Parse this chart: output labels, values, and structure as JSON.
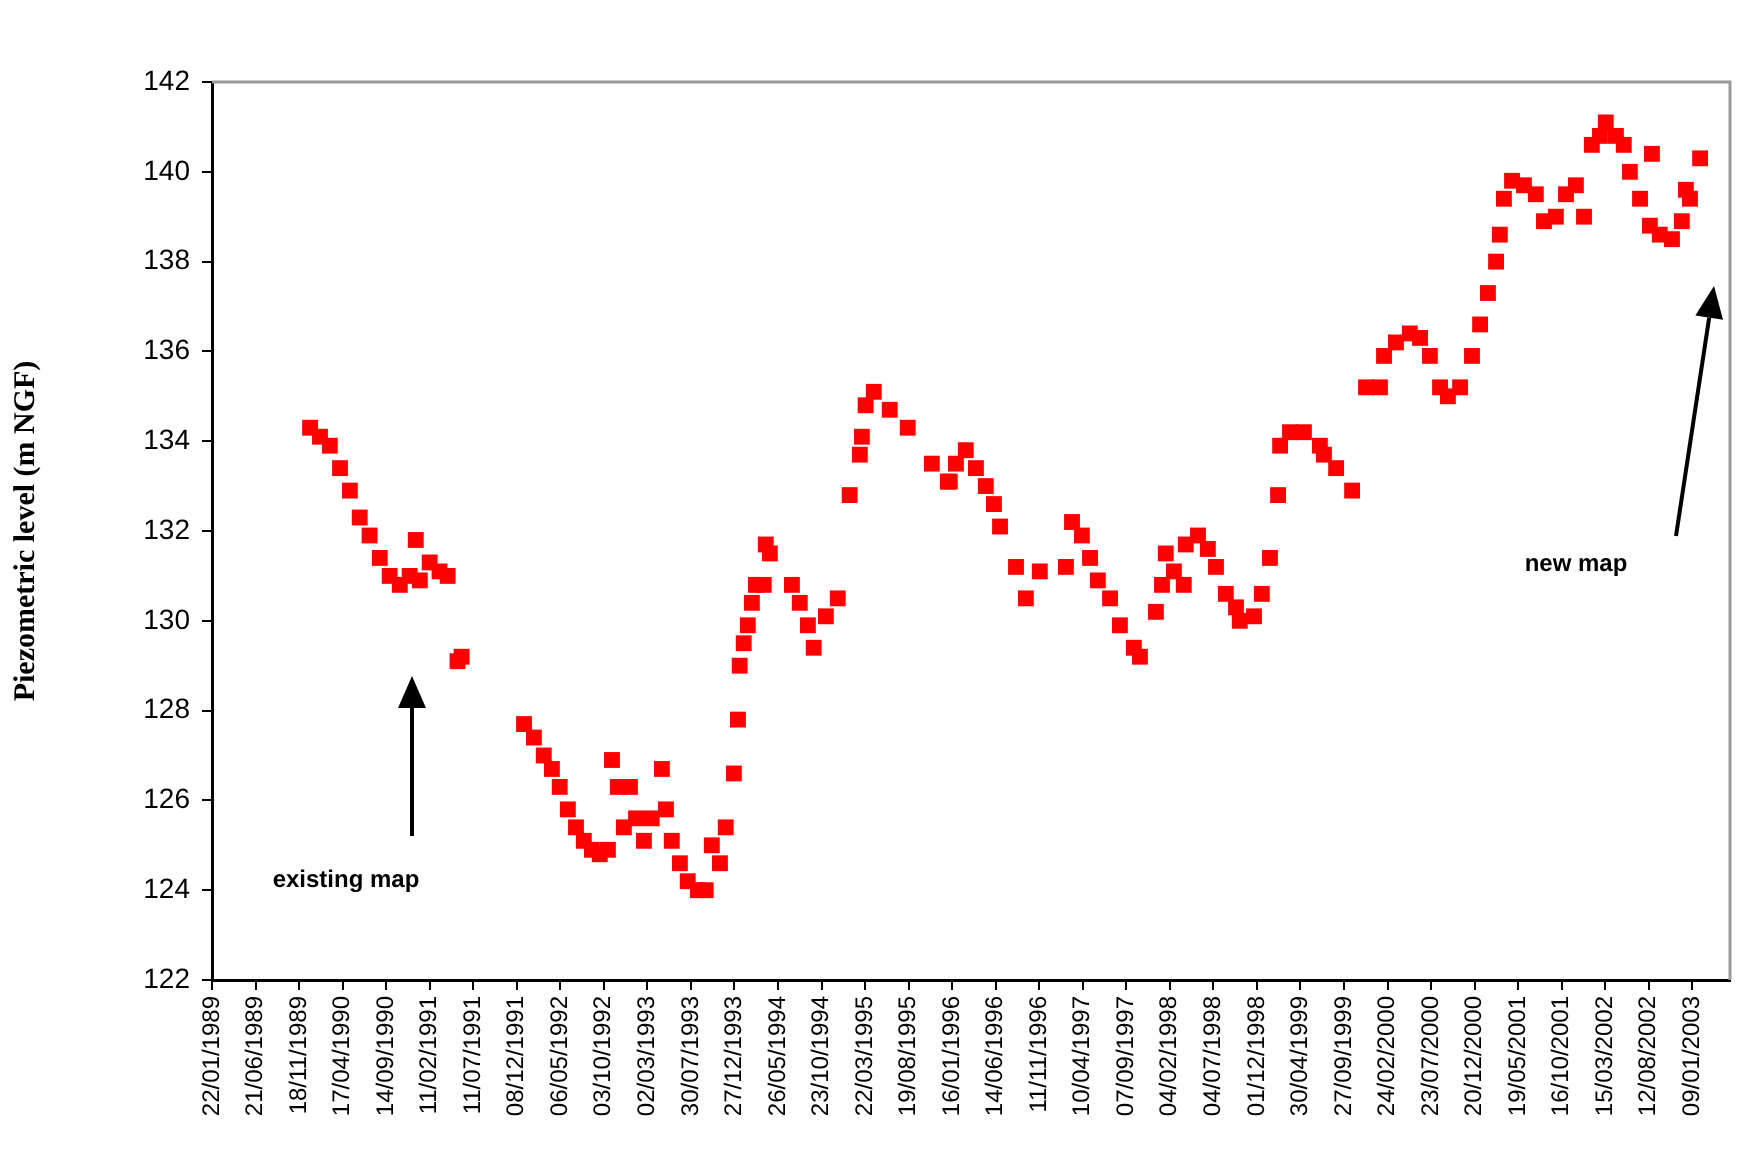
{
  "chart_data": {
    "type": "scatter",
    "ylabel": "Piezometric level (m NGF)",
    "marker": "square",
    "grid": false,
    "legend": false,
    "xlim": [
      "1989-01-22",
      "2003-05-19"
    ],
    "ylim": [
      122,
      142
    ],
    "yticks": [
      122,
      124,
      126,
      128,
      130,
      132,
      134,
      136,
      138,
      140,
      142
    ],
    "xticks": [
      {
        "value": "1989-01-22",
        "label": "22/01/1989"
      },
      {
        "value": "1989-06-21",
        "label": "21/06/1989"
      },
      {
        "value": "1989-11-18",
        "label": "18/11/1989"
      },
      {
        "value": "1990-04-17",
        "label": "17/04/1990"
      },
      {
        "value": "1990-09-14",
        "label": "14/09/1990"
      },
      {
        "value": "1991-02-11",
        "label": "11/02/1991"
      },
      {
        "value": "1991-07-11",
        "label": "11/07/1991"
      },
      {
        "value": "1991-12-08",
        "label": "08/12/1991"
      },
      {
        "value": "1992-05-06",
        "label": "06/05/1992"
      },
      {
        "value": "1992-10-03",
        "label": "03/10/1992"
      },
      {
        "value": "1993-03-02",
        "label": "02/03/1993"
      },
      {
        "value": "1993-07-30",
        "label": "30/07/1993"
      },
      {
        "value": "1993-12-27",
        "label": "27/12/1993"
      },
      {
        "value": "1994-05-26",
        "label": "26/05/1994"
      },
      {
        "value": "1994-10-23",
        "label": "23/10/1994"
      },
      {
        "value": "1995-03-22",
        "label": "22/03/1995"
      },
      {
        "value": "1995-08-19",
        "label": "19/08/1995"
      },
      {
        "value": "1996-01-16",
        "label": "16/01/1996"
      },
      {
        "value": "1996-06-14",
        "label": "14/06/1996"
      },
      {
        "value": "1996-11-11",
        "label": "11/11/1996"
      },
      {
        "value": "1997-04-10",
        "label": "10/04/1997"
      },
      {
        "value": "1997-09-07",
        "label": "07/09/1997"
      },
      {
        "value": "1998-02-04",
        "label": "04/02/1998"
      },
      {
        "value": "1998-07-04",
        "label": "04/07/1998"
      },
      {
        "value": "1998-12-01",
        "label": "01/12/1998"
      },
      {
        "value": "1999-04-30",
        "label": "30/04/1999"
      },
      {
        "value": "1999-09-27",
        "label": "27/09/1999"
      },
      {
        "value": "2000-02-24",
        "label": "24/02/2000"
      },
      {
        "value": "2000-07-23",
        "label": "23/07/2000"
      },
      {
        "value": "2000-12-20",
        "label": "20/12/2000"
      },
      {
        "value": "2001-05-19",
        "label": "19/05/2001"
      },
      {
        "value": "2001-10-16",
        "label": "16/10/2001"
      },
      {
        "value": "2002-03-15",
        "label": "15/03/2002"
      },
      {
        "value": "2002-08-12",
        "label": "12/08/2002"
      },
      {
        "value": "2003-01-09",
        "label": "09/01/2003"
      }
    ],
    "annotations": [
      "existing map",
      "new map"
    ],
    "series": [
      {
        "color": "#ff0000",
        "x": [
          "1989-12-26",
          "1990-01-29",
          "1990-03-04",
          "1990-04-08",
          "1990-05-12",
          "1990-06-15",
          "1990-07-19",
          "1990-08-23",
          "1990-09-26",
          "1990-10-31",
          "1990-12-04",
          "1990-12-25",
          "1991-01-08",
          "1991-02-11",
          "1991-03-17",
          "1991-04-14",
          "1991-05-18",
          "1991-06-01",
          "1992-01-02",
          "1992-02-05",
          "1992-03-10",
          "1992-04-07",
          "1992-05-04",
          "1992-06-01",
          "1992-06-29",
          "1992-07-26",
          "1992-08-23",
          "1992-09-19",
          "1992-10-17",
          "1992-10-31",
          "1992-11-20",
          "1992-12-11",
          "1993-01-01",
          "1993-01-22",
          "1993-02-18",
          "1993-03-17",
          "1993-04-21",
          "1993-05-05",
          "1993-05-25",
          "1993-06-22",
          "1993-07-19",
          "1993-08-23",
          "1993-09-19",
          "1993-10-10",
          "1993-11-07",
          "1993-11-27",
          "1993-12-25",
          "1994-01-08",
          "1994-01-14",
          "1994-01-28",
          "1994-02-11",
          "1994-02-25",
          "1994-03-11",
          "1994-04-07",
          "1994-04-14",
          "1994-04-28",
          "1994-07-13",
          "1994-08-09",
          "1994-09-06",
          "1994-09-26",
          "1994-11-07",
          "1994-12-18",
          "1995-01-28",
          "1995-03-04",
          "1995-03-11",
          "1995-03-24",
          "1995-04-21",
          "1995-06-15",
          "1995-08-16",
          "1995-11-07",
          "1996-01-01",
          "1996-01-08",
          "1996-01-29",
          "1996-03-03",
          "1996-04-07",
          "1996-05-11",
          "1996-06-08",
          "1996-06-29",
          "1996-08-23",
          "1996-09-26",
          "1996-11-13",
          "1997-02-11",
          "1997-03-04",
          "1997-04-07",
          "1997-05-05",
          "1997-06-01",
          "1997-07-13",
          "1997-08-16",
          "1997-10-03",
          "1997-10-24",
          "1997-12-18",
          "1998-01-08",
          "1998-01-21",
          "1998-02-18",
          "1998-03-24",
          "1998-03-31",
          "1998-05-12",
          "1998-06-15",
          "1998-07-13",
          "1998-08-16",
          "1998-09-20",
          "1998-10-03",
          "1998-11-21",
          "1998-12-18",
          "1999-01-15",
          "1999-02-12",
          "1999-02-19",
          "1999-03-25",
          "1999-05-12",
          "1999-07-06",
          "1999-07-20",
          "1999-08-31",
          "1999-10-25",
          "1999-12-12",
          "2000-01-29",
          "2000-02-12",
          "2000-03-24",
          "2000-05-11",
          "2000-06-15",
          "2000-07-19",
          "2000-08-23",
          "2000-09-19",
          "2000-10-31",
          "2000-12-11",
          "2001-01-08",
          "2001-02-04",
          "2001-03-04",
          "2001-03-17",
          "2001-03-31",
          "2001-04-28",
          "2001-06-08",
          "2001-07-19",
          "2001-08-16",
          "2001-09-26",
          "2001-10-31",
          "2001-12-04",
          "2002-01-01",
          "2002-01-28",
          "2002-02-25",
          "2002-03-17",
          "2002-04-21",
          "2002-05-18",
          "2002-06-08",
          "2002-07-13",
          "2002-08-16",
          "2002-08-23",
          "2002-09-19",
          "2002-10-31",
          "2002-12-04",
          "2002-12-18",
          "2003-01-01",
          "2003-02-05"
        ],
        "values": [
          134.3,
          134.1,
          133.9,
          133.4,
          132.9,
          132.3,
          131.9,
          131.4,
          131.0,
          130.8,
          131.0,
          131.8,
          130.9,
          131.3,
          131.1,
          131.0,
          129.1,
          129.2,
          127.7,
          127.4,
          127.0,
          126.7,
          126.3,
          125.8,
          125.4,
          125.1,
          124.9,
          124.8,
          124.9,
          126.9,
          126.3,
          125.4,
          126.3,
          125.6,
          125.1,
          125.6,
          126.7,
          125.8,
          125.1,
          124.6,
          124.2,
          124.0,
          124.0,
          125.0,
          124.6,
          125.4,
          126.6,
          127.8,
          129.0,
          129.5,
          129.9,
          130.4,
          130.8,
          130.8,
          131.7,
          131.5,
          130.8,
          130.4,
          129.9,
          129.4,
          130.1,
          130.5,
          132.8,
          133.7,
          134.1,
          134.8,
          135.1,
          134.7,
          134.3,
          133.5,
          133.1,
          133.1,
          133.5,
          133.8,
          133.4,
          133.0,
          132.6,
          132.1,
          131.2,
          130.5,
          131.1,
          131.2,
          132.2,
          131.9,
          131.4,
          130.9,
          130.5,
          129.9,
          129.4,
          129.2,
          130.2,
          130.8,
          131.5,
          131.1,
          130.8,
          131.7,
          131.9,
          131.6,
          131.2,
          130.6,
          130.3,
          130.0,
          130.1,
          130.6,
          131.4,
          132.8,
          133.9,
          134.2,
          134.2,
          133.9,
          133.7,
          133.4,
          132.9,
          135.2,
          135.2,
          135.9,
          136.2,
          136.4,
          136.3,
          135.9,
          135.2,
          135.0,
          135.2,
          135.9,
          136.6,
          137.3,
          138.0,
          138.6,
          139.4,
          139.8,
          139.7,
          139.5,
          138.9,
          139.0,
          139.5,
          139.7,
          139.0,
          140.6,
          140.8,
          141.1,
          140.8,
          140.6,
          140.0,
          139.4,
          138.8,
          140.4,
          138.6,
          138.5,
          138.9,
          139.6,
          139.4,
          140.3
        ]
      }
    ]
  }
}
